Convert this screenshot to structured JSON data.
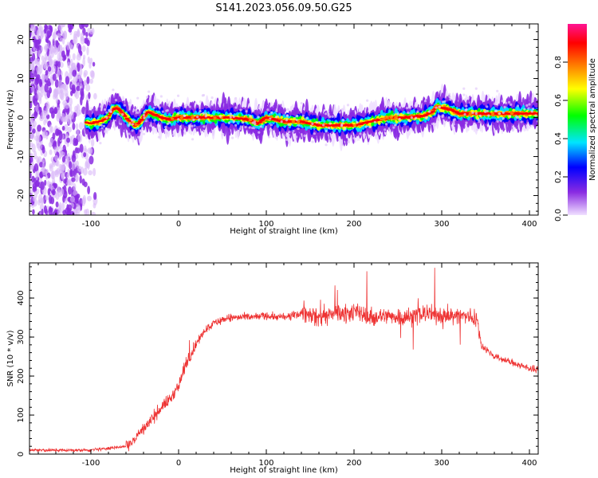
{
  "title": "S141.2023.056.09.50.G25",
  "chart_data": [
    {
      "type": "heatmap",
      "xlabel": "Height of straight line (km)",
      "ylabel": "Frequency (Hz)",
      "xlim": [
        -170,
        410
      ],
      "ylim": [
        -25,
        24
      ],
      "xticks": [
        -100,
        0,
        100,
        200,
        300,
        400
      ],
      "yticks": [
        -20,
        -10,
        0,
        10,
        20
      ],
      "ridge": {
        "x": [
          -110,
          -100,
          -90,
          -80,
          -75,
          -70,
          -65,
          -60,
          -55,
          -50,
          -45,
          -40,
          -35,
          -30,
          -20,
          -10,
          0,
          20,
          40,
          60,
          80,
          90,
          100,
          120,
          140,
          160,
          180,
          200,
          220,
          240,
          260,
          280,
          290,
          295,
          300,
          310,
          320,
          340,
          360,
          380,
          410
        ],
        "y": [
          -1,
          -1.5,
          -1,
          0,
          2,
          2.5,
          1.5,
          0,
          -1,
          -2,
          -1.5,
          0,
          1.5,
          1,
          0,
          -0.5,
          0,
          0,
          0,
          0,
          -0.5,
          -1.5,
          0,
          -1,
          -1,
          -2,
          -2,
          -2,
          -1,
          0,
          0,
          0.5,
          1.5,
          3,
          2.5,
          2,
          1,
          1,
          1,
          1,
          1
        ]
      },
      "colorbar": {
        "label": "Normalized spectral amplitude",
        "range": [
          0,
          1
        ],
        "ticks": [
          "0.0",
          "0.2",
          "0.4",
          "0.6",
          "0.8"
        ],
        "colors": [
          "#f0e0ff",
          "#8a2be2",
          "#0000ff",
          "#00e5ff",
          "#00ff00",
          "#ffff00",
          "#ff8000",
          "#ff0000",
          "#ff1493"
        ]
      }
    },
    {
      "type": "line",
      "xlabel": "Height of straight line (km)",
      "ylabel": "SNR (10 * v/v)",
      "xlim": [
        -170,
        410
      ],
      "ylim": [
        0,
        490
      ],
      "xticks": [
        -100,
        0,
        100,
        200,
        300,
        400
      ],
      "yticks": [
        0,
        100,
        200,
        300,
        400
      ],
      "color": "#ee3333",
      "series": [
        {
          "x": [
            -170,
            -100,
            -80,
            -60,
            -50,
            -40,
            -30,
            -20,
            -10,
            0,
            10,
            20,
            30,
            40,
            50,
            60,
            80,
            100,
            120,
            140,
            150,
            160,
            180,
            200,
            220,
            240,
            260,
            280,
            300,
            320,
            340,
            345,
            350,
            360,
            380,
            400,
            410
          ],
          "y": [
            10,
            10,
            15,
            20,
            40,
            65,
            90,
            120,
            140,
            175,
            240,
            280,
            320,
            335,
            345,
            350,
            350,
            355,
            350,
            360,
            360,
            350,
            360,
            365,
            350,
            355,
            350,
            360,
            355,
            355,
            350,
            280,
            270,
            250,
            235,
            220,
            215
          ]
        }
      ]
    }
  ]
}
